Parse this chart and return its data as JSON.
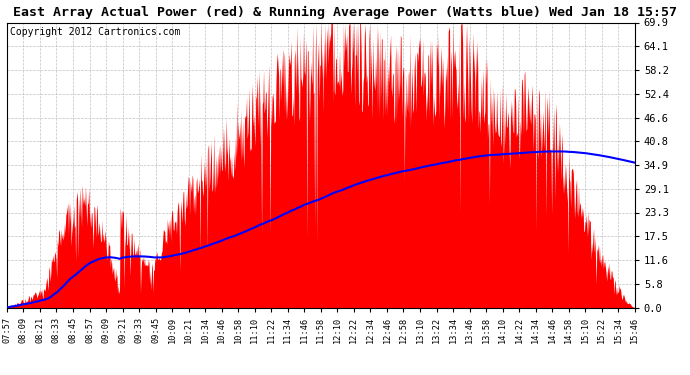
{
  "title": "East Array Actual Power (red) & Running Average Power (Watts blue) Wed Jan 18 15:57",
  "copyright": "Copyright 2012 Cartronics.com",
  "yticks": [
    0.0,
    5.8,
    11.6,
    17.5,
    23.3,
    29.1,
    34.9,
    40.8,
    46.6,
    52.4,
    58.2,
    64.1,
    69.9
  ],
  "ylim": [
    0.0,
    69.9
  ],
  "bar_color": "#FF0000",
  "line_color": "#0000FF",
  "bg_color": "#FFFFFF",
  "grid_color": "#C0C0C0",
  "title_fontsize": 9.5,
  "copyright_fontsize": 7,
  "xtick_labels": [
    "07:57",
    "08:09",
    "08:21",
    "08:33",
    "08:45",
    "08:57",
    "09:09",
    "09:21",
    "09:33",
    "09:45",
    "10:09",
    "10:21",
    "10:34",
    "10:46",
    "10:58",
    "11:10",
    "11:22",
    "11:34",
    "11:46",
    "11:58",
    "12:10",
    "12:22",
    "12:34",
    "12:46",
    "12:58",
    "13:10",
    "13:22",
    "13:34",
    "13:46",
    "13:58",
    "14:10",
    "14:22",
    "14:34",
    "14:46",
    "14:58",
    "15:10",
    "15:22",
    "15:34",
    "15:46"
  ],
  "seed": 12345,
  "n_points": 960,
  "total_minutes": 469
}
